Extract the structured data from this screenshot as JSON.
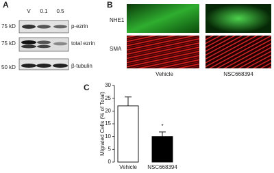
{
  "panel_a": {
    "label": "A",
    "lanes": [
      "V",
      "0.1",
      "0.5"
    ],
    "rows": [
      {
        "marker": "75 kD",
        "name": "p-ezrin"
      },
      {
        "marker": "75 kD",
        "name": "total ezrin"
      },
      {
        "marker": "50 kD",
        "name": "β-tubulin"
      }
    ]
  },
  "panel_b": {
    "label": "B",
    "rows": [
      "NHE1",
      "SMA"
    ],
    "columns": [
      "Vehicle",
      "NSC668394"
    ]
  },
  "chart_data": {
    "type": "bar",
    "panel_label": "C",
    "y_label": "Migrated Cells (% of Total)",
    "categories": [
      "Vehicle",
      "NSC668394"
    ],
    "values": [
      22,
      10
    ],
    "errors": [
      3.5,
      1.8
    ],
    "colors": [
      "#ffffff",
      "#000000"
    ],
    "annotation": "*",
    "ylim": [
      0,
      30
    ],
    "yticks": [
      0,
      5,
      10,
      15,
      20,
      25,
      30
    ]
  }
}
